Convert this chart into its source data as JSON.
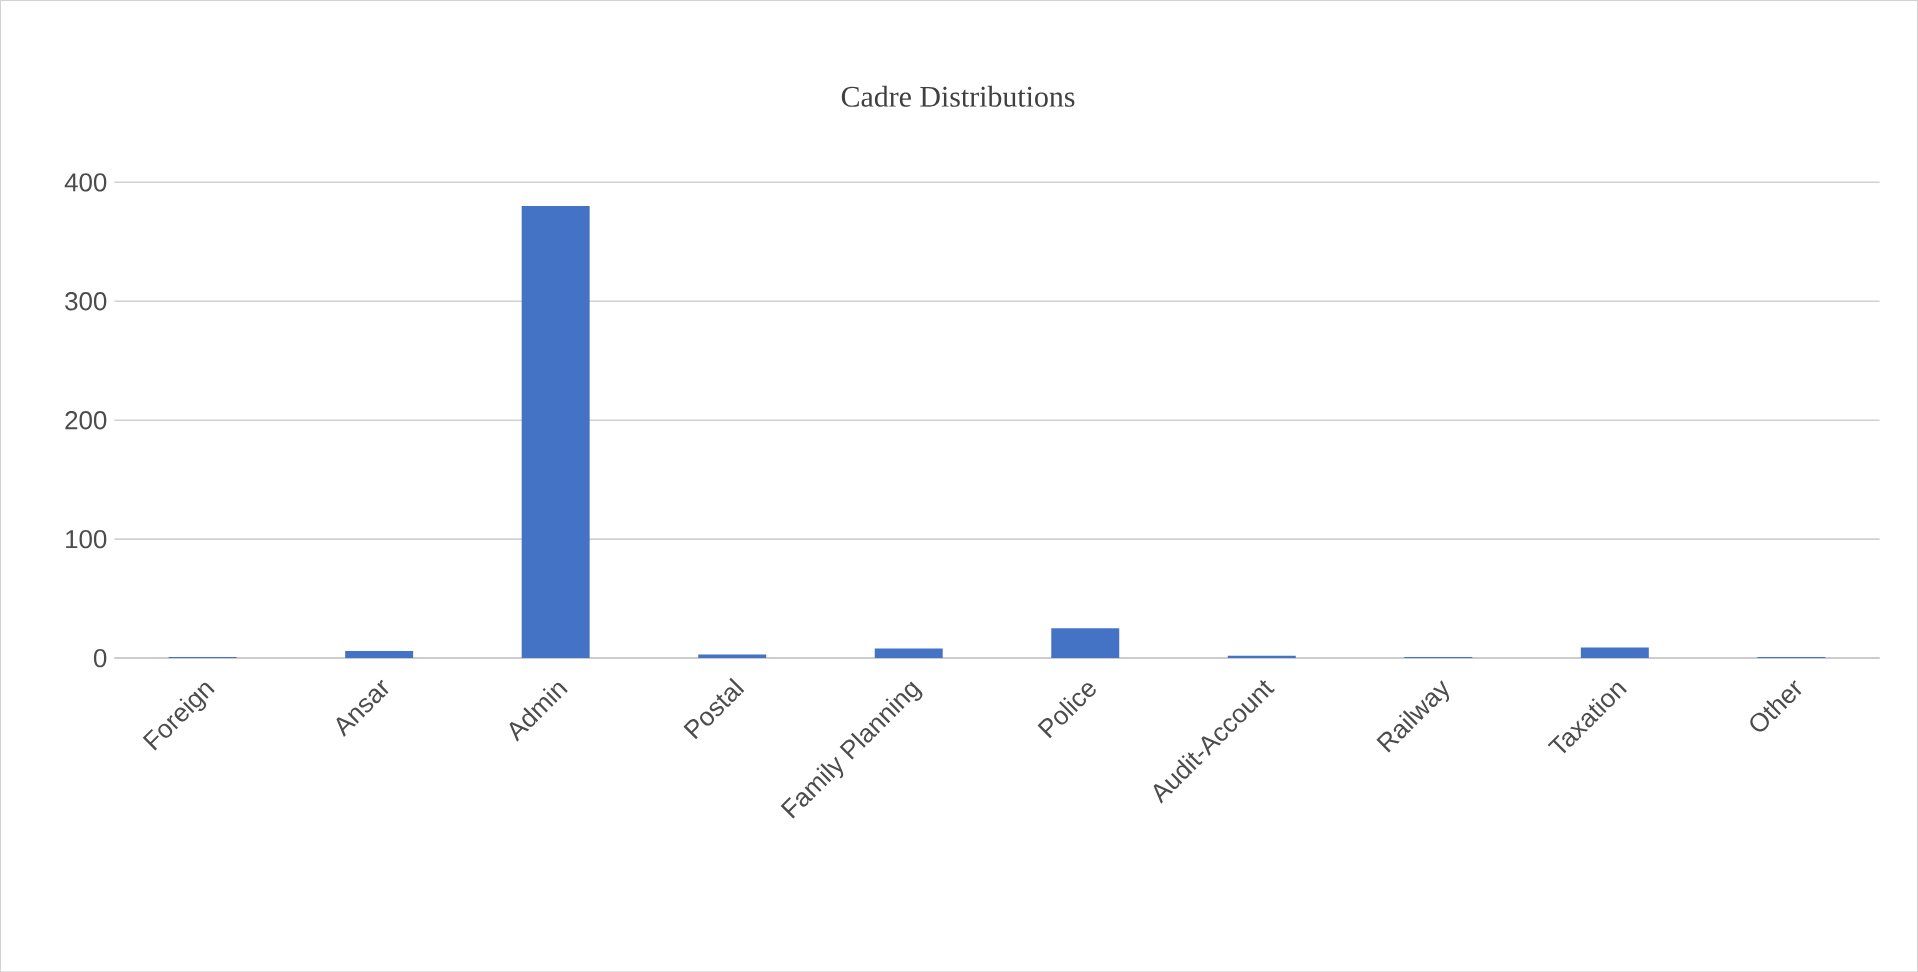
{
  "chart_data": {
    "type": "bar",
    "title": "Cadre Distributions",
    "categories": [
      "Foreign",
      "Ansar",
      "Admin",
      "Postal",
      "Family Planning",
      "Police",
      "Audit-Account",
      "Railway",
      "Taxation",
      "Other"
    ],
    "values": [
      1,
      6,
      380,
      3,
      8,
      25,
      2,
      1,
      9,
      1
    ],
    "color": "#4472c4",
    "ylim": [
      0,
      400
    ],
    "yticks": [
      0,
      100,
      200,
      300,
      400
    ],
    "grid": "y"
  }
}
